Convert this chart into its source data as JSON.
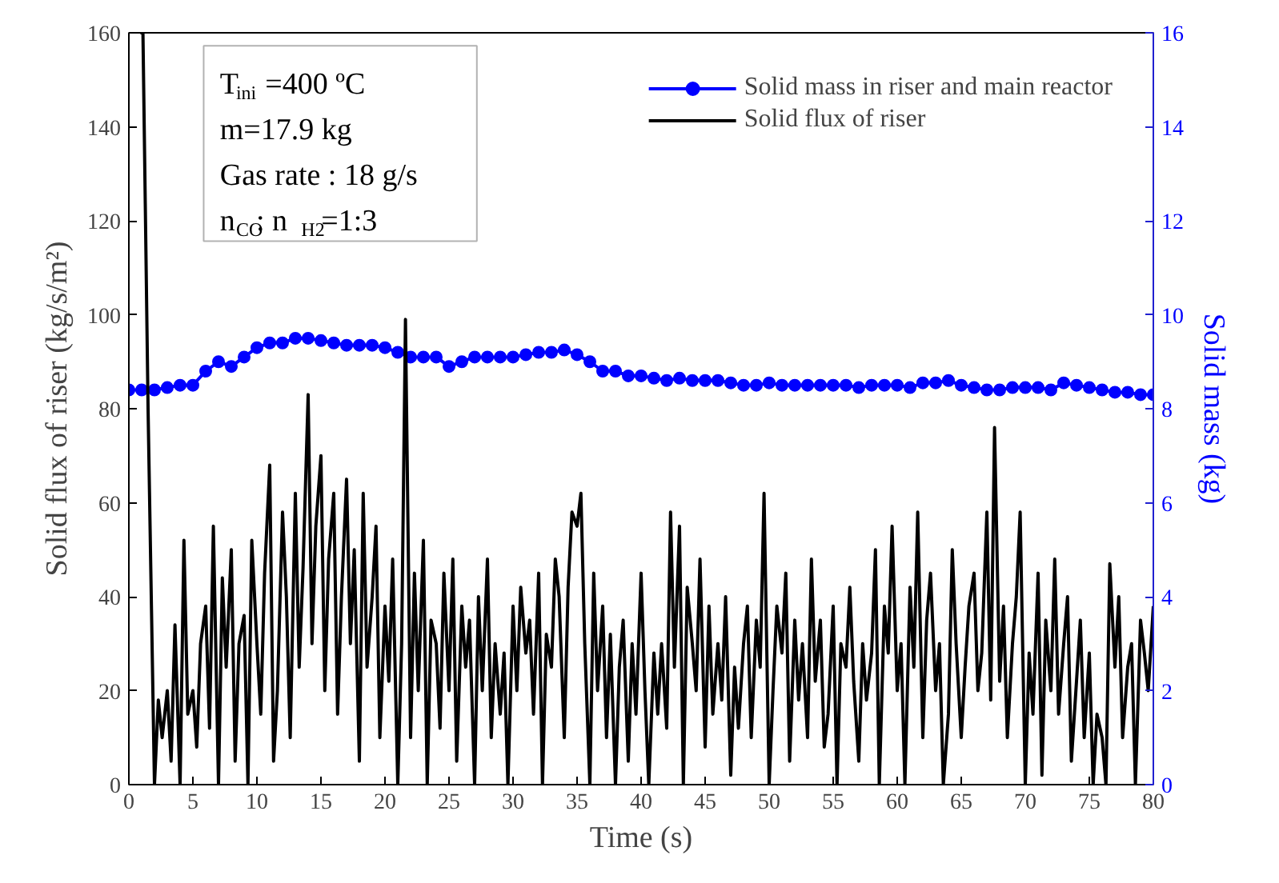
{
  "chart_data": {
    "type": "line",
    "xlabel": "Time (s)",
    "ylabel": "Solid flux of riser (kg/s/m²)",
    "y2label": "Solid mass (kg)",
    "xlim": [
      0,
      80
    ],
    "xticks": [
      0,
      5,
      10,
      15,
      20,
      25,
      30,
      35,
      40,
      45,
      50,
      55,
      60,
      65,
      70,
      75,
      80
    ],
    "ylim": [
      0,
      160
    ],
    "yticks": [
      0,
      20,
      40,
      60,
      80,
      100,
      120,
      140,
      160
    ],
    "y2lim": [
      0,
      16
    ],
    "y2ticks": [
      0,
      2,
      4,
      6,
      8,
      10,
      12,
      14,
      16
    ],
    "legend": "top right",
    "grid": false,
    "annotations": [
      "T$_{ini}$=400 ºC",
      "m=17.9 kg",
      "Gas rate : 18 g/s",
      "n$_{CO}$: n$_{H2}$=1:3"
    ],
    "series": [
      {
        "name": "Solid mass in riser and main reactor",
        "color": "#0000ff",
        "axis": "y2",
        "marker": "circle",
        "line_style": "solid",
        "x": [
          0,
          1,
          2,
          3,
          4,
          5,
          6,
          7,
          8,
          9,
          10,
          11,
          12,
          13,
          14,
          15,
          16,
          17,
          18,
          19,
          20,
          21,
          22,
          23,
          24,
          25,
          26,
          27,
          28,
          29,
          30,
          31,
          32,
          33,
          34,
          35,
          36,
          37,
          38,
          39,
          40,
          41,
          42,
          43,
          44,
          45,
          46,
          47,
          48,
          49,
          50,
          51,
          52,
          53,
          54,
          55,
          56,
          57,
          58,
          59,
          60,
          61,
          62,
          63,
          64,
          65,
          66,
          67,
          68,
          69,
          70,
          71,
          72,
          73,
          74,
          75,
          76,
          77,
          78,
          79,
          80
        ],
        "values": [
          8.4,
          8.4,
          8.4,
          8.45,
          8.5,
          8.5,
          8.8,
          9.0,
          8.9,
          9.1,
          9.3,
          9.4,
          9.4,
          9.5,
          9.5,
          9.45,
          9.4,
          9.35,
          9.35,
          9.35,
          9.3,
          9.2,
          9.1,
          9.1,
          9.1,
          8.9,
          9.0,
          9.1,
          9.1,
          9.1,
          9.1,
          9.15,
          9.2,
          9.2,
          9.25,
          9.15,
          9.0,
          8.8,
          8.8,
          8.7,
          8.7,
          8.65,
          8.6,
          8.65,
          8.6,
          8.6,
          8.6,
          8.55,
          8.5,
          8.5,
          8.55,
          8.5,
          8.5,
          8.5,
          8.5,
          8.5,
          8.5,
          8.45,
          8.5,
          8.5,
          8.5,
          8.45,
          8.55,
          8.55,
          8.6,
          8.5,
          8.45,
          8.4,
          8.4,
          8.45,
          8.45,
          8.45,
          8.4,
          8.55,
          8.5,
          8.45,
          8.4,
          8.35,
          8.35,
          8.3,
          8.3
        ]
      },
      {
        "name": "Solid flux of riser",
        "color": "#000000",
        "marker": "none",
        "line_style": "solid",
        "x": [
          0.9,
          1.1,
          1.5,
          2.0,
          2.3,
          2.6,
          3.0,
          3.3,
          3.6,
          4.0,
          4.3,
          4.6,
          5.0,
          5.3,
          5.6,
          6.0,
          6.3,
          6.6,
          7.0,
          7.3,
          7.6,
          8.0,
          8.3,
          8.6,
          9.0,
          9.3,
          9.6,
          10.0,
          10.3,
          10.6,
          11.0,
          11.3,
          11.6,
          12.0,
          12.3,
          12.6,
          13.0,
          13.3,
          13.6,
          14.0,
          14.3,
          14.6,
          15.0,
          15.3,
          15.6,
          16.0,
          16.3,
          16.6,
          17.0,
          17.3,
          17.6,
          18.0,
          18.3,
          18.6,
          19.0,
          19.3,
          19.6,
          20.0,
          20.3,
          20.6,
          21.0,
          21.3,
          21.6,
          22.0,
          22.3,
          22.6,
          23.0,
          23.3,
          23.6,
          24.0,
          24.3,
          24.6,
          25.0,
          25.3,
          25.6,
          26.0,
          26.3,
          26.6,
          27.0,
          27.3,
          27.6,
          28.0,
          28.3,
          28.6,
          29.0,
          29.3,
          29.6,
          30.0,
          30.3,
          30.6,
          31.0,
          31.3,
          31.6,
          32.0,
          32.3,
          32.6,
          33.0,
          33.3,
          33.6,
          34.0,
          34.3,
          34.6,
          35.0,
          35.3,
          35.6,
          36.0,
          36.3,
          36.6,
          37.0,
          37.3,
          37.6,
          38.0,
          38.3,
          38.6,
          39.0,
          39.3,
          39.6,
          40.0,
          40.3,
          40.6,
          41.0,
          41.3,
          41.6,
          42.0,
          42.3,
          42.6,
          43.0,
          43.3,
          43.6,
          44.0,
          44.3,
          44.6,
          45.0,
          45.3,
          45.6,
          46.0,
          46.3,
          46.6,
          47.0,
          47.3,
          47.6,
          48.0,
          48.3,
          48.6,
          49.0,
          49.3,
          49.6,
          50.0,
          50.3,
          50.6,
          51.0,
          51.3,
          51.6,
          52.0,
          52.3,
          52.6,
          53.0,
          53.3,
          53.6,
          54.0,
          54.3,
          54.6,
          55.0,
          55.3,
          55.6,
          56.0,
          56.3,
          56.6,
          57.0,
          57.3,
          57.6,
          58.0,
          58.3,
          58.6,
          59.0,
          59.3,
          59.6,
          60.0,
          60.3,
          60.6,
          61.0,
          61.3,
          61.6,
          62.0,
          62.3,
          62.6,
          63.0,
          63.3,
          63.6,
          64.0,
          64.3,
          64.6,
          65.0,
          65.3,
          65.6,
          66.0,
          66.3,
          66.6,
          67.0,
          67.3,
          67.6,
          68.0,
          68.3,
          68.6,
          69.0,
          69.3,
          69.6,
          70.0,
          70.3,
          70.6,
          71.0,
          71.3,
          71.6,
          72.0,
          72.3,
          72.6,
          73.0,
          73.3,
          73.6,
          74.0,
          74.3,
          74.6,
          75.0,
          75.3,
          75.6,
          76.0,
          76.3,
          76.6,
          77.0,
          77.3,
          77.6,
          78.0,
          78.3,
          78.6,
          79.0,
          79.3,
          79.6,
          80.0
        ],
        "values": [
          160,
          160,
          80,
          0,
          18,
          10,
          20,
          5,
          34,
          0,
          52,
          15,
          20,
          8,
          30,
          38,
          12,
          55,
          0,
          44,
          25,
          50,
          5,
          30,
          36,
          0,
          52,
          30,
          15,
          45,
          68,
          5,
          20,
          58,
          40,
          10,
          62,
          25,
          46,
          83,
          30,
          55,
          70,
          20,
          48,
          62,
          15,
          40,
          65,
          30,
          50,
          5,
          62,
          25,
          40,
          55,
          10,
          38,
          22,
          48,
          0,
          30,
          99,
          10,
          45,
          20,
          52,
          0,
          35,
          30,
          12,
          45,
          20,
          48,
          5,
          38,
          25,
          35,
          0,
          40,
          20,
          48,
          10,
          30,
          15,
          28,
          0,
          38,
          20,
          42,
          28,
          35,
          15,
          45,
          0,
          32,
          25,
          48,
          40,
          10,
          42,
          58,
          55,
          62,
          30,
          0,
          45,
          20,
          38,
          10,
          32,
          0,
          25,
          35,
          5,
          30,
          15,
          45,
          20,
          0,
          28,
          15,
          30,
          12,
          58,
          25,
          55,
          0,
          42,
          30,
          20,
          48,
          8,
          38,
          15,
          30,
          18,
          40,
          2,
          25,
          12,
          30,
          38,
          10,
          35,
          25,
          62,
          0,
          20,
          38,
          28,
          45,
          5,
          35,
          18,
          30,
          10,
          48,
          22,
          35,
          8,
          15,
          38,
          0,
          30,
          25,
          42,
          22,
          5,
          30,
          18,
          28,
          50,
          0,
          38,
          28,
          55,
          20,
          30,
          0,
          42,
          25,
          58,
          10,
          35,
          45,
          20,
          30,
          0,
          15,
          50,
          30,
          10,
          25,
          38,
          45,
          20,
          28,
          58,
          18,
          76,
          22,
          38,
          10,
          30,
          40,
          58,
          0,
          28,
          15,
          45,
          2,
          35,
          20,
          48,
          15,
          30,
          40,
          5,
          22,
          35,
          10,
          28,
          0,
          15,
          10,
          0,
          47,
          25,
          40,
          10,
          25,
          30,
          0,
          35,
          28,
          20,
          38
        ]
      }
    ]
  }
}
